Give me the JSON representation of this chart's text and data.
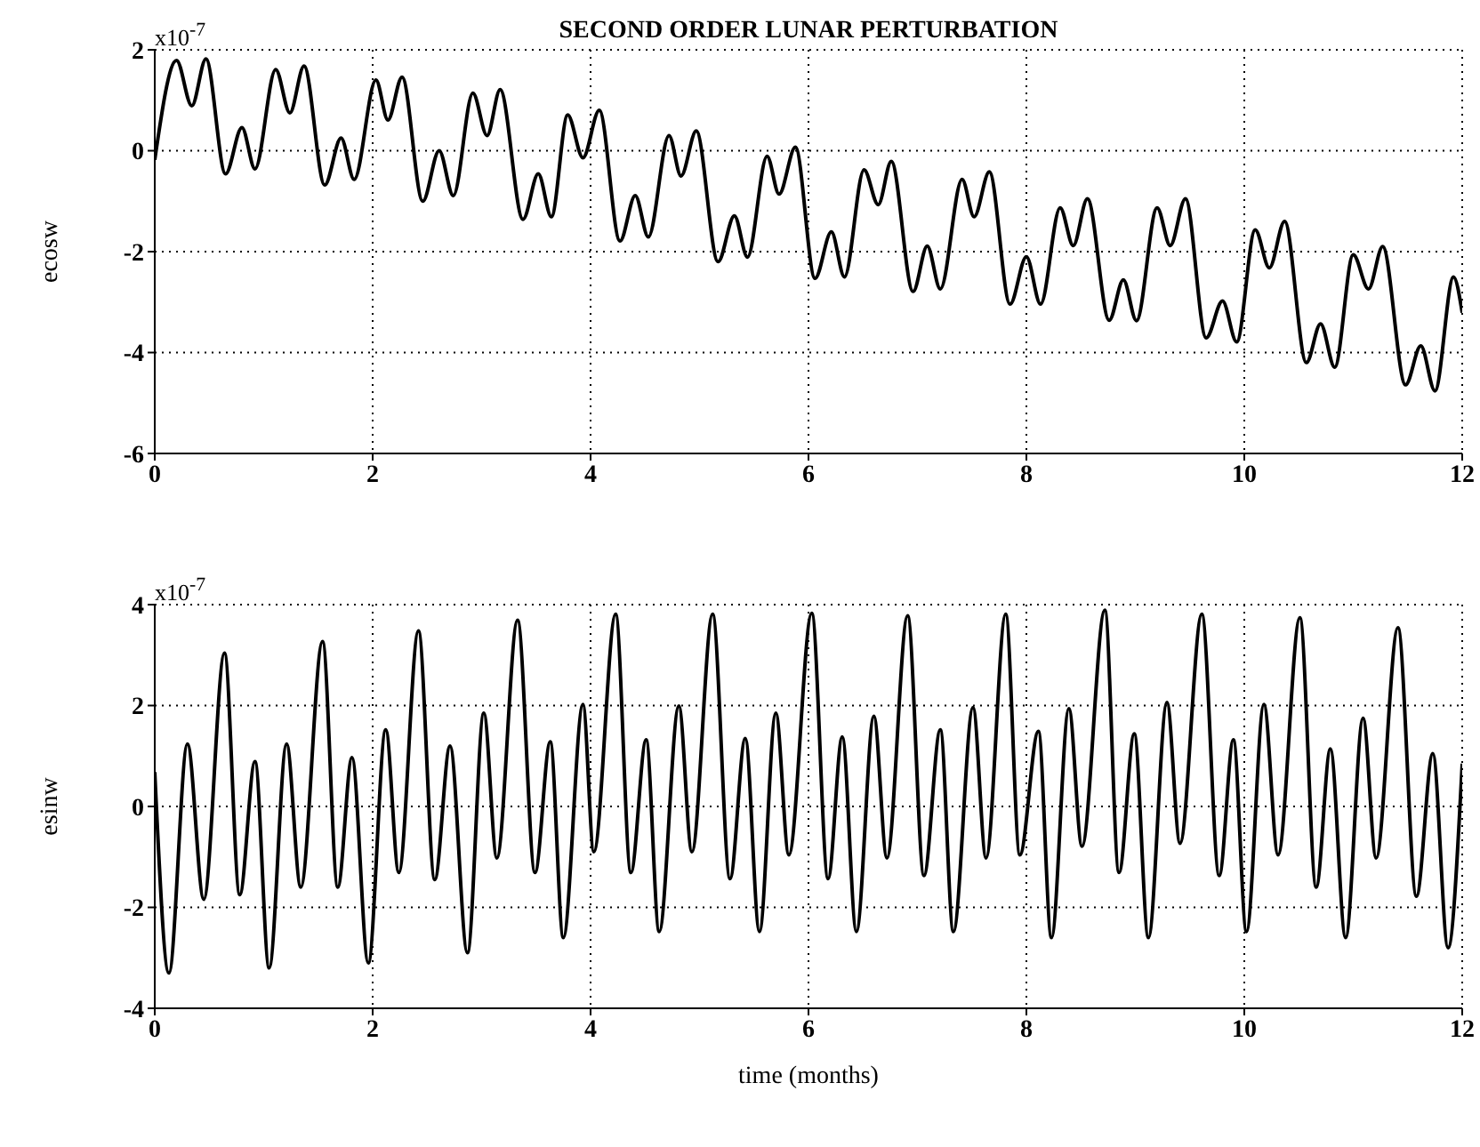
{
  "chart_data": [
    {
      "type": "line",
      "title": "SECOND ORDER LUNAR PERTURBATION",
      "ylabel": "ecosw",
      "annotations": [
        "x10$^{-7}$"
      ],
      "xlim": [
        0,
        12
      ],
      "xticks": [
        0,
        2,
        4,
        6,
        8,
        10,
        12
      ],
      "ylim": [
        -6,
        2
      ],
      "yticks": [
        -6,
        -4,
        -2,
        0,
        2
      ],
      "grid": true,
      "marker": "none",
      "line_style": "solid",
      "legend": false,
      "series": [
        {
          "color": "#000000",
          "x": [
            0,
            0.2,
            0.34,
            0.47,
            0.65,
            0.8,
            0.92,
            1.11,
            1.24,
            1.37,
            1.56,
            1.71,
            1.83,
            2.03,
            2.14,
            2.27,
            2.46,
            2.61,
            2.74,
            2.92,
            3.05,
            3.17,
            3.38,
            3.52,
            3.64,
            3.79,
            3.93,
            4.08,
            4.27,
            4.41,
            4.53,
            4.72,
            4.83,
            4.97,
            5.17,
            5.32,
            5.44,
            5.62,
            5.73,
            5.88,
            6.06,
            6.21,
            6.33,
            6.51,
            6.64,
            6.76,
            6.96,
            7.09,
            7.21,
            7.41,
            7.52,
            7.66,
            7.85,
            8.0,
            8.13,
            8.31,
            8.43,
            8.56,
            8.76,
            8.89,
            9.01,
            9.2,
            9.32,
            9.46,
            9.65,
            9.8,
            9.93,
            10.1,
            10.23,
            10.37,
            10.57,
            10.7,
            10.83,
            11.0,
            11.14,
            11.27,
            11.48,
            11.62,
            11.75,
            11.92,
            12
          ],
          "values": [
            -0.18,
            1.79,
            0.89,
            1.82,
            -0.46,
            0.46,
            -0.36,
            1.61,
            0.75,
            1.68,
            -0.68,
            0.25,
            -0.57,
            1.4,
            0.61,
            1.46,
            -1.0,
            0,
            -0.89,
            1.14,
            0.3,
            1.21,
            -1.36,
            -0.46,
            -1.31,
            0.71,
            -0.14,
            0.8,
            -1.79,
            -0.89,
            -1.71,
            0.3,
            -0.5,
            0.39,
            -2.2,
            -1.29,
            -2.11,
            -0.11,
            -0.86,
            0.07,
            -2.53,
            -1.61,
            -2.5,
            -0.38,
            -1.07,
            -0.21,
            -2.79,
            -1.89,
            -2.74,
            -0.57,
            -1.31,
            -0.42,
            -3.04,
            -2.1,
            -3.04,
            -1.13,
            -1.88,
            -0.95,
            -3.36,
            -2.56,
            -3.37,
            -1.13,
            -1.88,
            -0.95,
            -3.71,
            -2.98,
            -3.79,
            -1.57,
            -2.32,
            -1.4,
            -4.2,
            -3.43,
            -4.29,
            -2.06,
            -2.74,
            -1.9,
            -4.64,
            -3.87,
            -4.76,
            -2.5,
            -3.21
          ]
        }
      ]
    },
    {
      "type": "line",
      "ylabel": "esinw",
      "xlabel": "time (months)",
      "annotations": [
        "x10$^{-7}$"
      ],
      "xlim": [
        0,
        12
      ],
      "xticks": [
        0,
        2,
        4,
        6,
        8,
        10,
        12
      ],
      "ylim": [
        -4,
        4
      ],
      "yticks": [
        -4,
        -2,
        0,
        2,
        4
      ],
      "grid": true,
      "marker": "none",
      "line_style": "solid",
      "legend": false,
      "series": [
        {
          "color": "#000000",
          "x": [
            0,
            0.13,
            0.3,
            0.45,
            0.64,
            0.78,
            0.92,
            1.05,
            1.21,
            1.34,
            1.54,
            1.68,
            1.81,
            1.96,
            2.12,
            2.24,
            2.42,
            2.57,
            2.71,
            2.87,
            3.02,
            3.14,
            3.33,
            3.49,
            3.63,
            3.75,
            3.93,
            4.03,
            4.23,
            4.37,
            4.51,
            4.63,
            4.81,
            4.93,
            5.12,
            5.28,
            5.42,
            5.55,
            5.7,
            5.82,
            6.03,
            6.18,
            6.31,
            6.44,
            6.6,
            6.72,
            6.91,
            7.06,
            7.21,
            7.33,
            7.51,
            7.63,
            7.81,
            7.94,
            8.11,
            8.23,
            8.39,
            8.51,
            8.72,
            8.85,
            8.99,
            9.12,
            9.29,
            9.41,
            9.61,
            9.77,
            9.9,
            10.02,
            10.18,
            10.31,
            10.51,
            10.66,
            10.79,
            10.93,
            11.09,
            11.21,
            11.41,
            11.58,
            11.73,
            11.87,
            12
          ],
          "values": [
            0.68,
            -3.3,
            1.24,
            -1.84,
            3.04,
            -1.75,
            0.89,
            -3.2,
            1.24,
            -1.6,
            3.27,
            -1.6,
            0.97,
            -3.1,
            1.52,
            -1.31,
            3.48,
            -1.45,
            1.2,
            -2.9,
            1.85,
            -1.02,
            3.69,
            -1.31,
            1.28,
            -2.6,
            2.02,
            -0.9,
            3.81,
            -1.31,
            1.32,
            -2.48,
            1.99,
            -0.9,
            3.81,
            -1.43,
            1.35,
            -2.48,
            1.85,
            -0.96,
            3.83,
            -1.43,
            1.38,
            -2.48,
            1.79,
            -1.02,
            3.78,
            -1.37,
            1.52,
            -2.48,
            1.96,
            -1.02,
            3.81,
            -0.96,
            1.49,
            -2.6,
            1.94,
            -0.79,
            3.89,
            -1.31,
            1.44,
            -2.6,
            2.06,
            -0.73,
            3.81,
            -1.37,
            1.32,
            -2.48,
            2.02,
            -0.96,
            3.74,
            -1.6,
            1.14,
            -2.6,
            1.75,
            -1.02,
            3.54,
            -1.78,
            1.05,
            -2.8,
            0.85
          ]
        }
      ]
    }
  ]
}
